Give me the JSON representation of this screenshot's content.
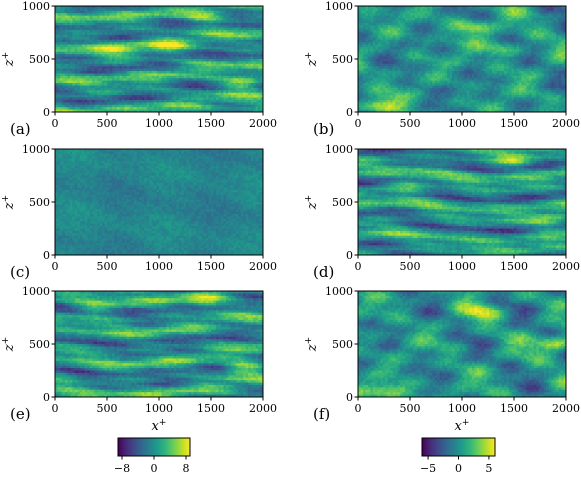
{
  "figure": {
    "colors": {
      "viridis": [
        "#440154",
        "#482878",
        "#3e4a89",
        "#31688e",
        "#26828e",
        "#1f9e89",
        "#35b779",
        "#6ece58",
        "#b5de2b",
        "#fde725"
      ]
    }
  },
  "chart_data": [
    {
      "type": "heatmap",
      "panel_label": "(a)",
      "colorbar_group": "left",
      "xlabel": "",
      "ylabel": "z+",
      "xlim": [
        0,
        2000
      ],
      "ylim": [
        0,
        1000
      ],
      "xticks": [
        "0",
        "500",
        "1000",
        "1500",
        "2000"
      ],
      "yticks": [
        "0",
        "500",
        "1000"
      ],
      "value_range": [
        -8,
        8
      ],
      "texture": "streaky",
      "highlights": [
        {
          "x": 1800,
          "z": 270,
          "value": 8
        },
        {
          "x": 1450,
          "z": 900,
          "value": 7
        },
        {
          "x": 600,
          "z": 580,
          "value": 5
        },
        {
          "x": 1100,
          "z": 620,
          "value": 5
        }
      ]
    },
    {
      "type": "heatmap",
      "panel_label": "(b)",
      "colorbar_group": "right",
      "xlabel": "",
      "ylabel": "z+",
      "xlim": [
        0,
        2000
      ],
      "ylim": [
        0,
        1000
      ],
      "xticks": [
        "0",
        "500",
        "1000",
        "1500",
        "2000"
      ],
      "yticks": [
        "0",
        "500",
        "1000"
      ],
      "value_range": [
        -6,
        6
      ],
      "texture": "blotchy",
      "highlights": [
        {
          "x": 200,
          "z": 60,
          "value": 6
        },
        {
          "x": 1100,
          "z": 800,
          "value": 5
        },
        {
          "x": 1400,
          "z": 600,
          "value": 4
        }
      ]
    },
    {
      "type": "heatmap",
      "panel_label": "(c)",
      "colorbar_group": "left",
      "xlabel": "",
      "ylabel": "z+",
      "xlim": [
        0,
        2000
      ],
      "ylim": [
        0,
        1000
      ],
      "xticks": [
        "0",
        "500",
        "1000",
        "1500",
        "2000"
      ],
      "yticks": [
        "0",
        "500",
        "1000"
      ],
      "value_range": [
        -8,
        8
      ],
      "texture": "smooth",
      "highlights": []
    },
    {
      "type": "heatmap",
      "panel_label": "(d)",
      "colorbar_group": "right",
      "xlabel": "",
      "ylabel": "z+",
      "xlim": [
        0,
        2000
      ],
      "ylim": [
        0,
        1000
      ],
      "xticks": [
        "0",
        "500",
        "1000",
        "1500",
        "2000"
      ],
      "yticks": [
        "0",
        "500",
        "1000"
      ],
      "value_range": [
        -6,
        6
      ],
      "texture": "streaky",
      "highlights": [
        {
          "x": 1500,
          "z": 900,
          "value": 5
        },
        {
          "x": 1850,
          "z": 300,
          "value": 5
        },
        {
          "x": 500,
          "z": 650,
          "value": 4
        }
      ]
    },
    {
      "type": "heatmap",
      "panel_label": "(e)",
      "colorbar_group": "left",
      "xlabel": "x+",
      "ylabel": "z+",
      "xlim": [
        0,
        2000
      ],
      "ylim": [
        0,
        1000
      ],
      "xticks": [
        "0",
        "500",
        "1000",
        "1500",
        "2000"
      ],
      "yticks": [
        "0",
        "500",
        "1000"
      ],
      "value_range": [
        -8,
        8
      ],
      "texture": "streaky",
      "highlights": [
        {
          "x": 1800,
          "z": 270,
          "value": 8
        },
        {
          "x": 1450,
          "z": 900,
          "value": 7
        },
        {
          "x": 400,
          "z": 830,
          "value": 5
        }
      ]
    },
    {
      "type": "heatmap",
      "panel_label": "(f)",
      "colorbar_group": "right",
      "xlabel": "x+",
      "ylabel": "z+",
      "xlim": [
        0,
        2000
      ],
      "ylim": [
        0,
        1000
      ],
      "xticks": [
        "0",
        "500",
        "1000",
        "1500",
        "2000"
      ],
      "yticks": [
        "0",
        "500",
        "1000"
      ],
      "value_range": [
        -6,
        6
      ],
      "texture": "blotchy",
      "highlights": [
        {
          "x": 300,
          "z": 60,
          "value": 6
        },
        {
          "x": 1900,
          "z": 500,
          "value": 6
        },
        {
          "x": 1200,
          "z": 800,
          "value": 4
        }
      ]
    },
    {
      "type": "colorbar",
      "group": "left",
      "colormap": "viridis",
      "range": [
        -9,
        9
      ],
      "ticks": [
        -8,
        0,
        8
      ],
      "tick_labels": [
        "−8",
        "0",
        "8"
      ]
    },
    {
      "type": "colorbar",
      "group": "right",
      "colormap": "viridis",
      "range": [
        -6,
        6
      ],
      "ticks": [
        -5,
        0,
        5
      ],
      "tick_labels": [
        "−5",
        "0",
        "5"
      ]
    }
  ]
}
